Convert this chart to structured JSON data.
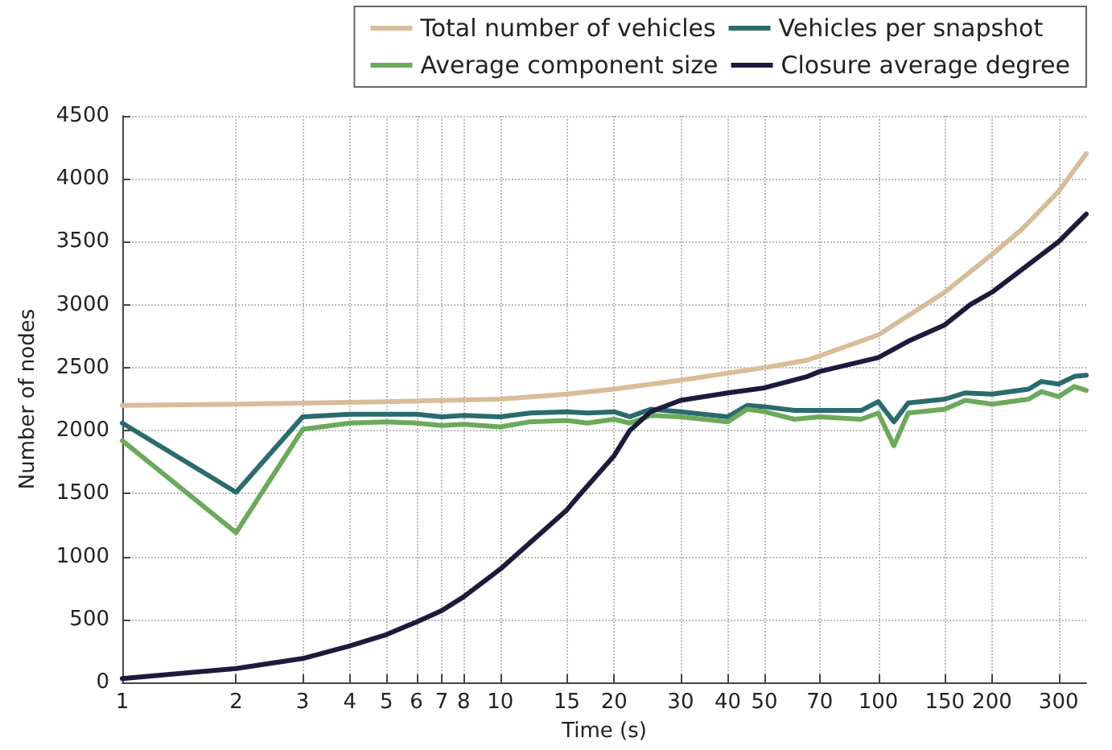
{
  "chart_data": {
    "type": "line",
    "xlabel": "Time (s)",
    "ylabel": "Number of nodes",
    "log": "x",
    "xlim": [
      1,
      355
    ],
    "xticks": [
      1,
      2,
      3,
      4,
      5,
      6,
      7,
      8,
      10,
      15,
      20,
      30,
      40,
      50,
      70,
      100,
      150,
      200,
      300
    ],
    "ylim": [
      0,
      4500
    ],
    "yticks": [
      0,
      500,
      1000,
      1500,
      2000,
      2500,
      3000,
      3500,
      4000,
      4500
    ],
    "grid": true,
    "legend": "top",
    "marker": "none",
    "line_style": "solid",
    "series": [
      {
        "name": "Total number of vehicles",
        "color": "#d9bc9a",
        "x": [
          1,
          2,
          5,
          10,
          15,
          20,
          30,
          50,
          65,
          100,
          150,
          200,
          240,
          300,
          355
        ],
        "values": [
          2200,
          2210,
          2230,
          2250,
          2290,
          2330,
          2400,
          2500,
          2560,
          2760,
          3100,
          3400,
          3600,
          3900,
          4200
        ]
      },
      {
        "name": "Vehicles per snapshot",
        "color": "#2a6b6e",
        "x": [
          1,
          2,
          3,
          4,
          5,
          6,
          7,
          8,
          10,
          12,
          15,
          17,
          20,
          22,
          25,
          30,
          40,
          45,
          50,
          60,
          70,
          90,
          100,
          110,
          120,
          150,
          170,
          200,
          250,
          270,
          300,
          330,
          355
        ],
        "values": [
          2060,
          1510,
          2110,
          2130,
          2130,
          2130,
          2110,
          2120,
          2110,
          2140,
          2150,
          2140,
          2150,
          2110,
          2170,
          2150,
          2110,
          2200,
          2190,
          2160,
          2160,
          2160,
          2230,
          2070,
          2220,
          2250,
          2300,
          2290,
          2330,
          2390,
          2370,
          2430,
          2440
        ]
      },
      {
        "name": "Average component size",
        "color": "#6aaa5a",
        "x": [
          1,
          2,
          3,
          4,
          5,
          6,
          7,
          8,
          10,
          12,
          15,
          17,
          20,
          22,
          25,
          30,
          40,
          45,
          50,
          60,
          70,
          90,
          100,
          110,
          120,
          150,
          170,
          200,
          250,
          270,
          300,
          330,
          355
        ],
        "values": [
          1920,
          1190,
          2010,
          2060,
          2070,
          2060,
          2040,
          2050,
          2030,
          2070,
          2080,
          2060,
          2090,
          2060,
          2120,
          2110,
          2070,
          2170,
          2150,
          2090,
          2110,
          2090,
          2140,
          1880,
          2140,
          2170,
          2240,
          2210,
          2250,
          2310,
          2270,
          2350,
          2320
        ]
      },
      {
        "name": "Closure average degree",
        "color": "#1c1a3d",
        "x": [
          1,
          2,
          3,
          4,
          5,
          6,
          7,
          8,
          10,
          15,
          16,
          20,
          22,
          25,
          30,
          40,
          50,
          65,
          70,
          100,
          120,
          150,
          175,
          200,
          300,
          355
        ],
        "values": [
          30,
          110,
          190,
          290,
          380,
          480,
          570,
          680,
          900,
          1370,
          1470,
          1800,
          2000,
          2150,
          2240,
          2300,
          2340,
          2430,
          2470,
          2580,
          2710,
          2840,
          3000,
          3100,
          3500,
          3720
        ]
      }
    ]
  }
}
